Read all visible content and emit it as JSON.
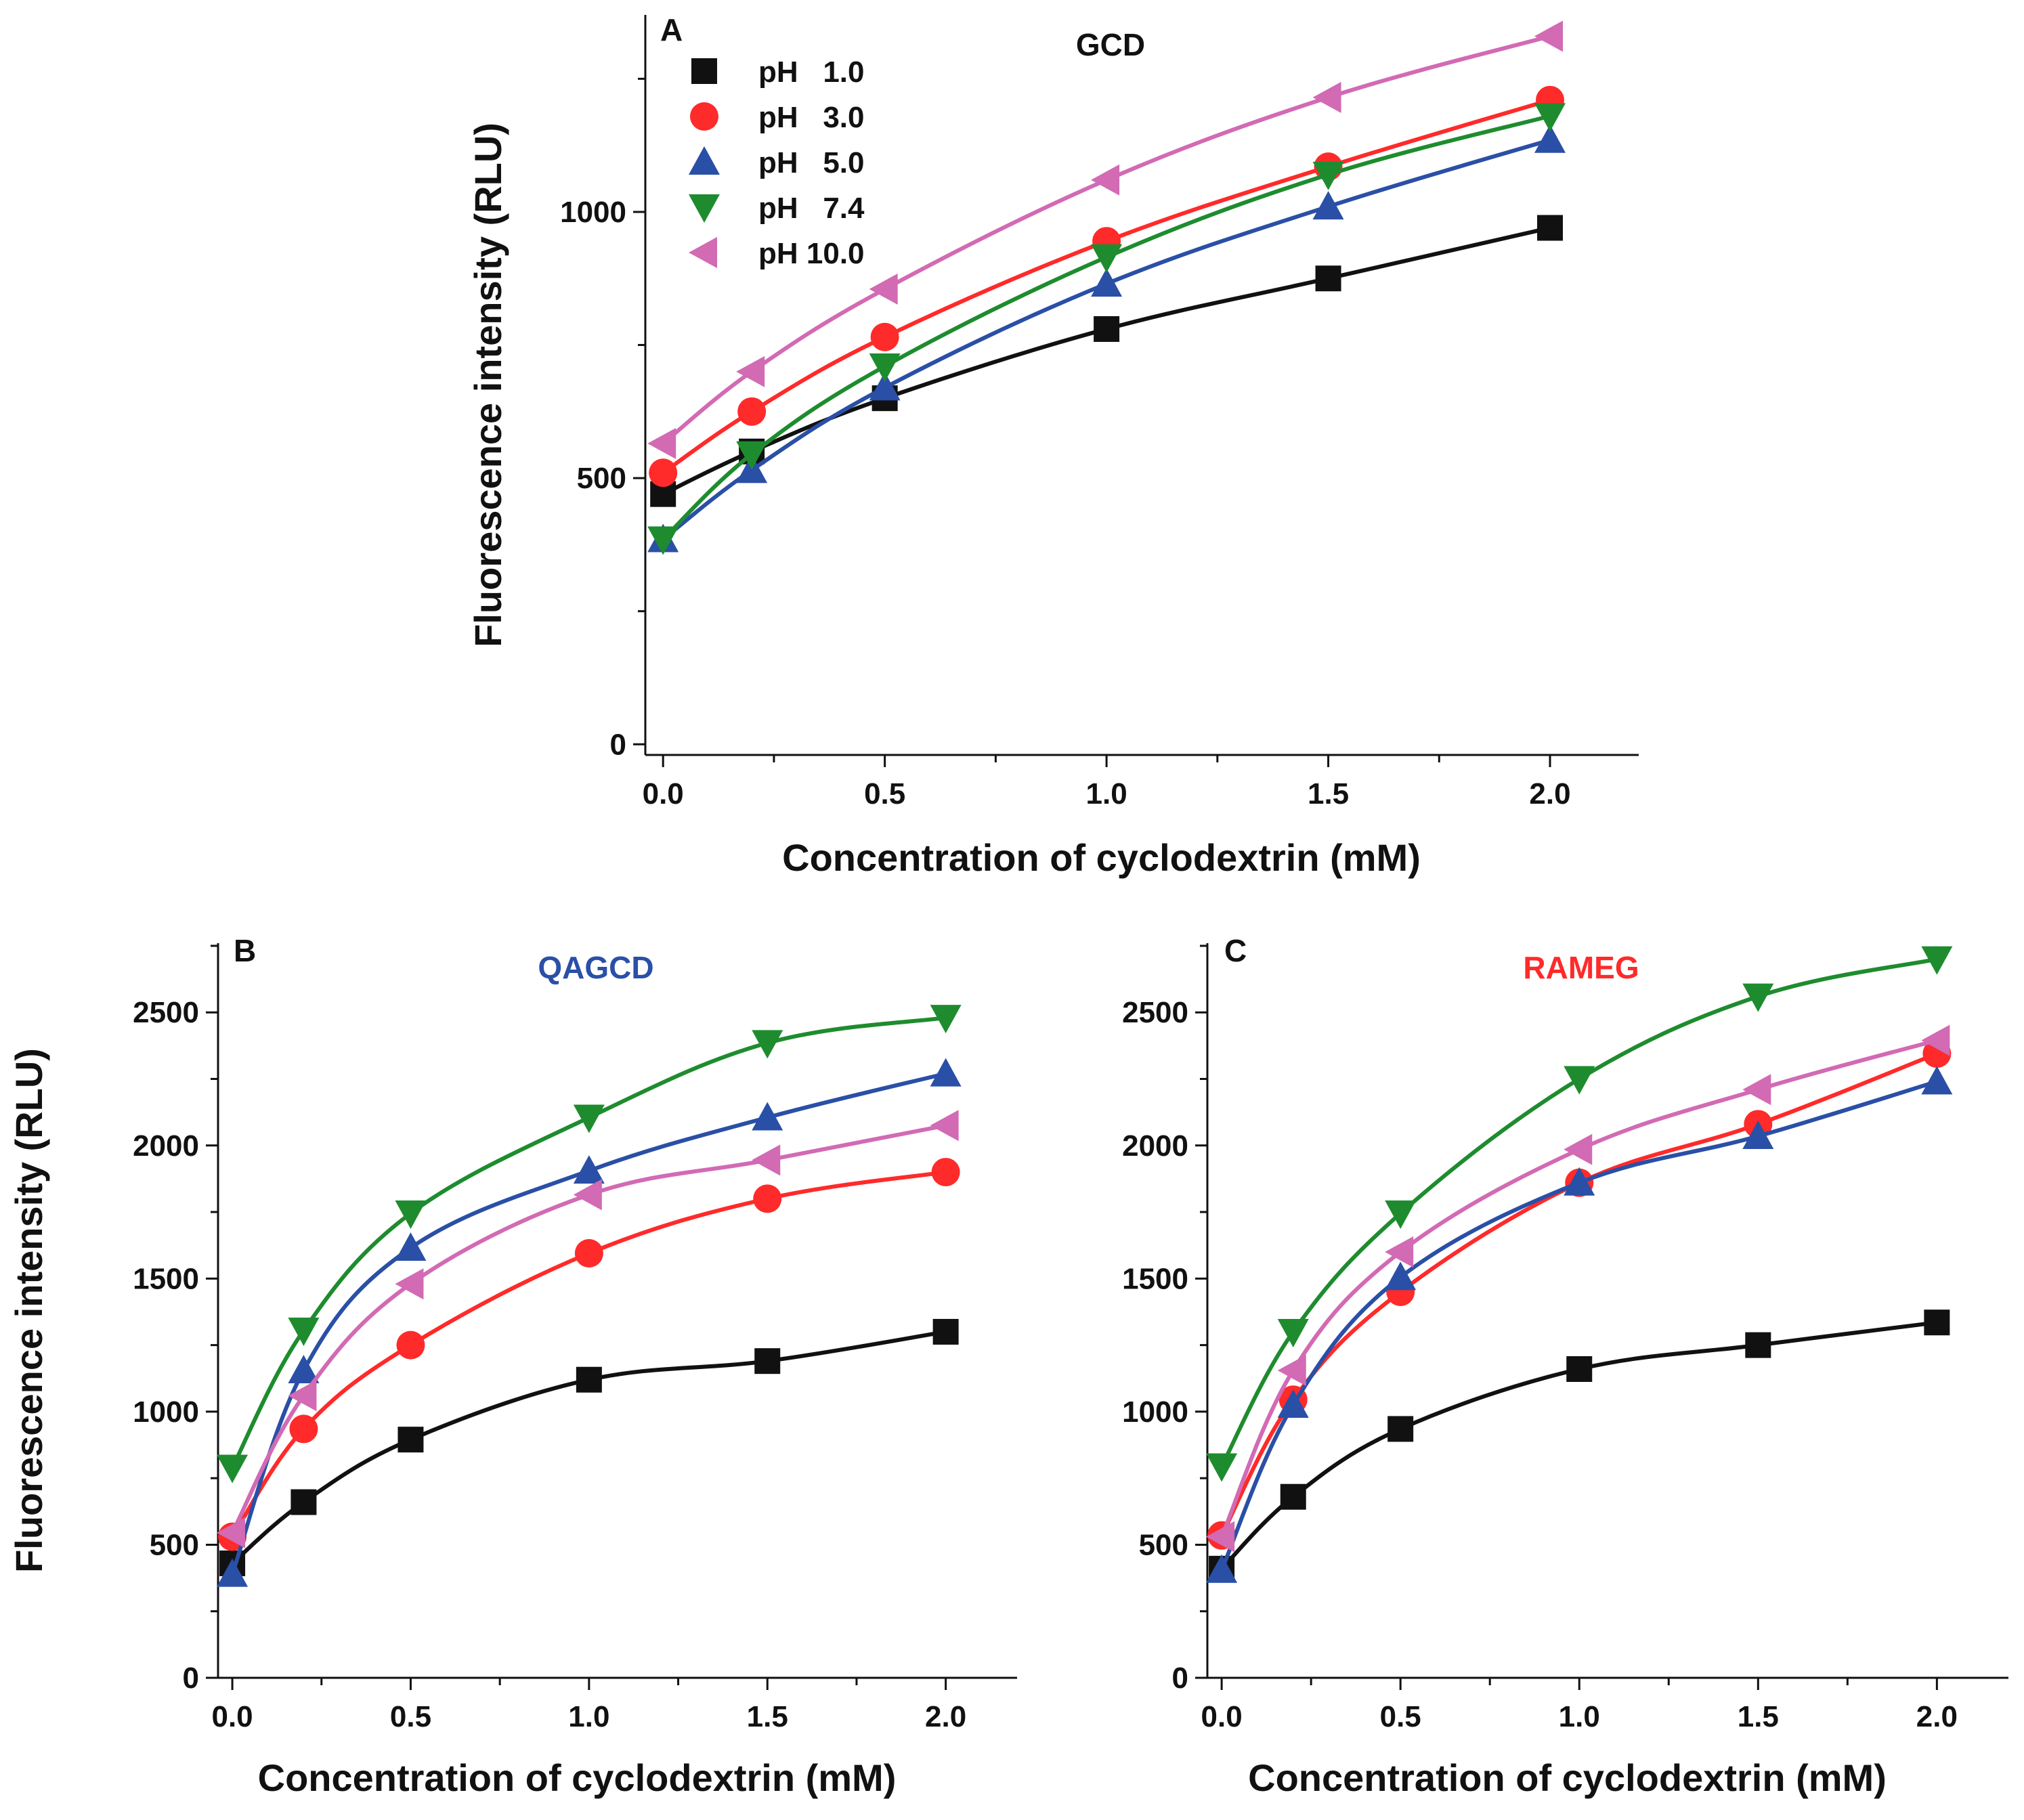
{
  "chart_data": [
    {
      "panel": "A",
      "title": "GCD",
      "title_color": "#111111",
      "type": "scatter",
      "xlabel": "Concentration of cyclodextrin (mM)",
      "ylabel": "Fluorescence intensity (RLU)",
      "xlim": [
        -0.04,
        2.2
      ],
      "ylim": [
        -20,
        1370
      ],
      "xticks": [
        0.0,
        0.5,
        1.0,
        1.5,
        2.0
      ],
      "xtick_labels": [
        "0.0",
        "0.5",
        "1.0",
        "1.5",
        "2.0"
      ],
      "yticks": [
        0,
        500,
        1000
      ],
      "ytick_labels": [
        "0",
        "500",
        "1000"
      ],
      "x": [
        0.0,
        0.2,
        0.5,
        1.0,
        1.5,
        2.0
      ],
      "legend_position": "top-left",
      "series": [
        {
          "name": "pH   1.0",
          "color": "#111111",
          "marker": "square",
          "values": [
            470,
            550,
            650,
            780,
            875,
            970
          ]
        },
        {
          "name": "pH   3.0",
          "color": "#ff2a2a",
          "marker": "circle",
          "values": [
            510,
            625,
            765,
            945,
            1085,
            1210
          ]
        },
        {
          "name": "pH   5.0",
          "color": "#2a4fa6",
          "marker": "triangle-up",
          "values": [
            385,
            515,
            670,
            865,
            1010,
            1135
          ]
        },
        {
          "name": "pH   7.4",
          "color": "#1e8c2e",
          "marker": "triangle-down",
          "values": [
            385,
            545,
            710,
            915,
            1070,
            1180
          ]
        },
        {
          "name": "pH 10.0",
          "color": "#d26ab4",
          "marker": "triangle-left",
          "values": [
            565,
            700,
            855,
            1060,
            1215,
            1330
          ]
        }
      ]
    },
    {
      "panel": "B",
      "title": "QAGCD",
      "title_color": "#2a4fa6",
      "type": "scatter",
      "xlabel": "Concentration of cyclodextrin (mM)",
      "ylabel": "Fluorescence intensity (RLU)",
      "xlim": [
        -0.04,
        2.2
      ],
      "ylim": [
        0,
        2760
      ],
      "xticks": [
        0.0,
        0.5,
        1.0,
        1.5,
        2.0
      ],
      "xtick_labels": [
        "0.0",
        "0.5",
        "1.0",
        "1.5",
        "2.0"
      ],
      "yticks": [
        0,
        500,
        1000,
        1500,
        2000,
        2500
      ],
      "ytick_labels": [
        "0",
        "500",
        "1000",
        "1500",
        "2000",
        "2500"
      ],
      "x": [
        0.0,
        0.2,
        0.5,
        1.0,
        1.5,
        2.0
      ],
      "series": [
        {
          "color": "#111111",
          "marker": "square",
          "values": [
            430,
            660,
            895,
            1120,
            1190,
            1300
          ]
        },
        {
          "color": "#ff2a2a",
          "marker": "circle",
          "values": [
            530,
            935,
            1250,
            1595,
            1800,
            1900
          ]
        },
        {
          "color": "#2a4fa6",
          "marker": "triangle-up",
          "values": [
            390,
            1155,
            1615,
            1905,
            2105,
            2270
          ]
        },
        {
          "color": "#1e8c2e",
          "marker": "triangle-down",
          "values": [
            790,
            1305,
            1745,
            2105,
            2385,
            2480
          ]
        },
        {
          "color": "#d26ab4",
          "marker": "triangle-left",
          "values": [
            545,
            1060,
            1480,
            1815,
            1945,
            2075
          ]
        }
      ]
    },
    {
      "panel": "C",
      "title": "RAMEG",
      "title_color": "#ff2a2a",
      "type": "scatter",
      "xlabel": "Concentration of cyclodextrin (mM)",
      "ylabel": "",
      "xlim": [
        -0.04,
        2.2
      ],
      "ylim": [
        0,
        2760
      ],
      "xticks": [
        0.0,
        0.5,
        1.0,
        1.5,
        2.0
      ],
      "xtick_labels": [
        "0.0",
        "0.5",
        "1.0",
        "1.5",
        "2.0"
      ],
      "yticks": [
        0,
        500,
        1000,
        1500,
        2000,
        2500
      ],
      "ytick_labels": [
        "0",
        "500",
        "1000",
        "1500",
        "2000",
        "2500"
      ],
      "x": [
        0.0,
        0.2,
        0.5,
        1.0,
        1.5,
        2.0
      ],
      "series": [
        {
          "color": "#111111",
          "marker": "square",
          "values": [
            410,
            680,
            935,
            1160,
            1250,
            1335
          ]
        },
        {
          "color": "#ff2a2a",
          "marker": "circle",
          "values": [
            535,
            1045,
            1450,
            1860,
            2080,
            2345
          ]
        },
        {
          "color": "#2a4fa6",
          "marker": "triangle-up",
          "values": [
            405,
            1025,
            1505,
            1860,
            2035,
            2240
          ]
        },
        {
          "color": "#1e8c2e",
          "marker": "triangle-down",
          "values": [
            795,
            1300,
            1745,
            2250,
            2560,
            2700
          ]
        },
        {
          "color": "#d26ab4",
          "marker": "triangle-left",
          "values": [
            530,
            1155,
            1600,
            1985,
            2210,
            2395
          ]
        }
      ]
    }
  ]
}
